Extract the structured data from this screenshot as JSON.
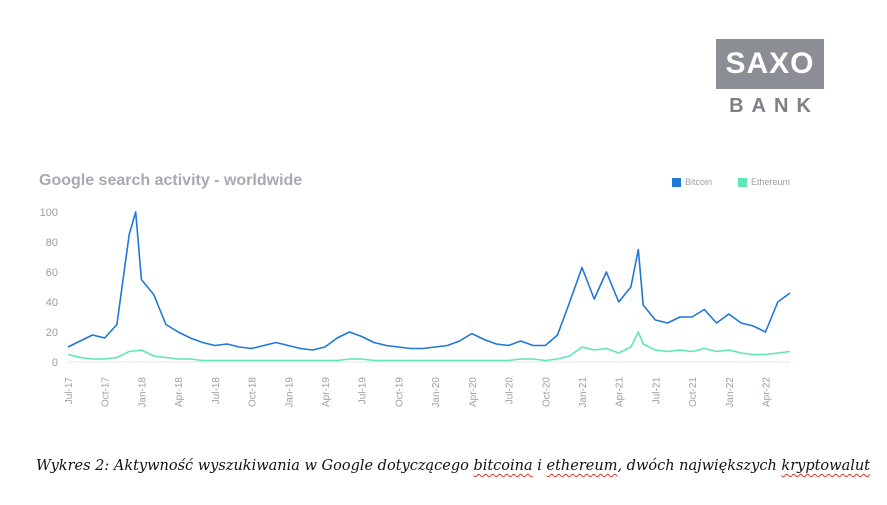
{
  "logo": {
    "line1": "SAXO",
    "line2": "BANK"
  },
  "caption": {
    "before": "Wykres 2: Aktywność wyszukiwania w Google dotyczącego ",
    "word1": "bitcoina",
    "mid": " i ",
    "word2": "ethereum",
    "after": ", dwóch największych ",
    "word3": "kryptowalut"
  },
  "chart_data": {
    "type": "line",
    "title": "Google search activity - worldwide",
    "xlabel": "",
    "ylabel": "",
    "ylim": [
      0,
      100
    ],
    "yticks": [
      0,
      20,
      40,
      60,
      80,
      100
    ],
    "x_start": "2017-07",
    "x_end": "2022-06",
    "grid": false,
    "legend_position": "top-right",
    "xticks": [
      {
        "label": "Jul-17",
        "at": "2017-07"
      },
      {
        "label": "Oct-17",
        "at": "2017-10"
      },
      {
        "label": "Jan-18",
        "at": "2018-01"
      },
      {
        "label": "Apr-18",
        "at": "2018-04"
      },
      {
        "label": "Jul-18",
        "at": "2018-07"
      },
      {
        "label": "Oct-18",
        "at": "2018-10"
      },
      {
        "label": "Jan-19",
        "at": "2019-01"
      },
      {
        "label": "Apr-19",
        "at": "2019-04"
      },
      {
        "label": "Jul-19",
        "at": "2019-07"
      },
      {
        "label": "Oct-19",
        "at": "2019-10"
      },
      {
        "label": "Jan-20",
        "at": "2020-01"
      },
      {
        "label": "Apr-20",
        "at": "2020-04"
      },
      {
        "label": "Jul-20",
        "at": "2020-07"
      },
      {
        "label": "Oct-20",
        "at": "2020-10"
      },
      {
        "label": "Jan-21",
        "at": "2021-01"
      },
      {
        "label": "Apr-21",
        "at": "2021-04"
      },
      {
        "label": "Jul-21",
        "at": "2021-07"
      },
      {
        "label": "Oct-21",
        "at": "2021-10"
      },
      {
        "label": "Jan-22",
        "at": "2022-01"
      },
      {
        "label": "Apr-22",
        "at": "2022-04"
      }
    ],
    "series": [
      {
        "name": "Bitcoin",
        "color": "#1f77d6",
        "points": [
          [
            "2017-07",
            10
          ],
          [
            "2017-08",
            14
          ],
          [
            "2017-09",
            18
          ],
          [
            "2017-10",
            16
          ],
          [
            "2017-11",
            25
          ],
          [
            "2017-12",
            85
          ],
          [
            "2017-12-17",
            100
          ],
          [
            "2018-01",
            55
          ],
          [
            "2018-02",
            45
          ],
          [
            "2018-03",
            25
          ],
          [
            "2018-04",
            20
          ],
          [
            "2018-05",
            16
          ],
          [
            "2018-06",
            13
          ],
          [
            "2018-07",
            11
          ],
          [
            "2018-08",
            12
          ],
          [
            "2018-09",
            10
          ],
          [
            "2018-10",
            9
          ],
          [
            "2018-11",
            11
          ],
          [
            "2018-12",
            13
          ],
          [
            "2019-01",
            11
          ],
          [
            "2019-02",
            9
          ],
          [
            "2019-03",
            8
          ],
          [
            "2019-04",
            10
          ],
          [
            "2019-05",
            16
          ],
          [
            "2019-06",
            20
          ],
          [
            "2019-07",
            17
          ],
          [
            "2019-08",
            13
          ],
          [
            "2019-09",
            11
          ],
          [
            "2019-10",
            10
          ],
          [
            "2019-11",
            9
          ],
          [
            "2019-12",
            9
          ],
          [
            "2020-01",
            10
          ],
          [
            "2020-02",
            11
          ],
          [
            "2020-03",
            14
          ],
          [
            "2020-04",
            19
          ],
          [
            "2020-05",
            15
          ],
          [
            "2020-06",
            12
          ],
          [
            "2020-07",
            11
          ],
          [
            "2020-08",
            14
          ],
          [
            "2020-09",
            11
          ],
          [
            "2020-10",
            11
          ],
          [
            "2020-11",
            18
          ],
          [
            "2020-12",
            40
          ],
          [
            "2021-01",
            63
          ],
          [
            "2021-02",
            42
          ],
          [
            "2021-03",
            60
          ],
          [
            "2021-04",
            40
          ],
          [
            "2021-05",
            50
          ],
          [
            "2021-05-19",
            75
          ],
          [
            "2021-06",
            38
          ],
          [
            "2021-07",
            28
          ],
          [
            "2021-08",
            26
          ],
          [
            "2021-09",
            30
          ],
          [
            "2021-10",
            30
          ],
          [
            "2021-11",
            35
          ],
          [
            "2021-12",
            26
          ],
          [
            "2022-01",
            32
          ],
          [
            "2022-02",
            26
          ],
          [
            "2022-03",
            24
          ],
          [
            "2022-04",
            20
          ],
          [
            "2022-05",
            40
          ],
          [
            "2022-06",
            46
          ]
        ]
      },
      {
        "name": "Ethereum",
        "color": "#5ee6b4",
        "points": [
          [
            "2017-07",
            5
          ],
          [
            "2017-08",
            3
          ],
          [
            "2017-09",
            2
          ],
          [
            "2017-10",
            2
          ],
          [
            "2017-11",
            3
          ],
          [
            "2017-12",
            7
          ],
          [
            "2018-01",
            8
          ],
          [
            "2018-02",
            4
          ],
          [
            "2018-03",
            3
          ],
          [
            "2018-04",
            2
          ],
          [
            "2018-05",
            2
          ],
          [
            "2018-06",
            1
          ],
          [
            "2018-07",
            1
          ],
          [
            "2018-08",
            1
          ],
          [
            "2018-09",
            1
          ],
          [
            "2018-10",
            1
          ],
          [
            "2018-11",
            1
          ],
          [
            "2018-12",
            1
          ],
          [
            "2019-01",
            1
          ],
          [
            "2019-02",
            1
          ],
          [
            "2019-03",
            1
          ],
          [
            "2019-04",
            1
          ],
          [
            "2019-05",
            1
          ],
          [
            "2019-06",
            2
          ],
          [
            "2019-07",
            2
          ],
          [
            "2019-08",
            1
          ],
          [
            "2019-09",
            1
          ],
          [
            "2019-10",
            1
          ],
          [
            "2019-11",
            1
          ],
          [
            "2019-12",
            1
          ],
          [
            "2020-01",
            1
          ],
          [
            "2020-02",
            1
          ],
          [
            "2020-03",
            1
          ],
          [
            "2020-04",
            1
          ],
          [
            "2020-05",
            1
          ],
          [
            "2020-06",
            1
          ],
          [
            "2020-07",
            1
          ],
          [
            "2020-08",
            2
          ],
          [
            "2020-09",
            2
          ],
          [
            "2020-10",
            1
          ],
          [
            "2020-11",
            2
          ],
          [
            "2020-12",
            4
          ],
          [
            "2021-01",
            10
          ],
          [
            "2021-02",
            8
          ],
          [
            "2021-03",
            9
          ],
          [
            "2021-04",
            6
          ],
          [
            "2021-05",
            10
          ],
          [
            "2021-05-19",
            20
          ],
          [
            "2021-06",
            12
          ],
          [
            "2021-07",
            8
          ],
          [
            "2021-08",
            7
          ],
          [
            "2021-09",
            8
          ],
          [
            "2021-10",
            7
          ],
          [
            "2021-11",
            9
          ],
          [
            "2021-12",
            7
          ],
          [
            "2022-01",
            8
          ],
          [
            "2022-02",
            6
          ],
          [
            "2022-03",
            5
          ],
          [
            "2022-04",
            5
          ],
          [
            "2022-05",
            6
          ],
          [
            "2022-06",
            7
          ]
        ]
      }
    ]
  }
}
